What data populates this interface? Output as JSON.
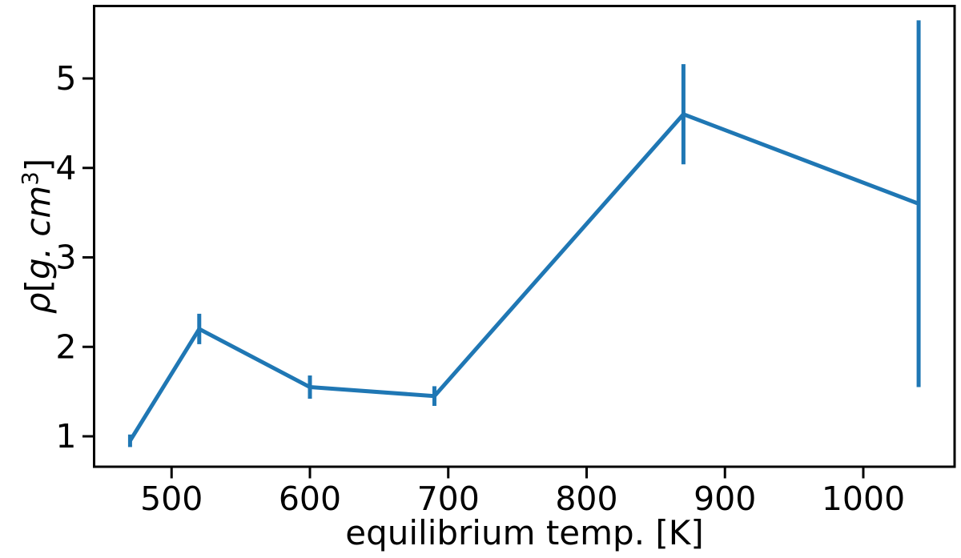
{
  "figure": {
    "background_color": "#ffffff",
    "axis_color": "#000000",
    "line_color": "#1f77b4"
  },
  "chart_data": {
    "type": "line",
    "title": "",
    "xlabel": "equilibrium temp. [K]",
    "ylabel": "ρ[g. cm³]",
    "ylabel_parts": {
      "symbol": "ρ",
      "open_bracket": "[",
      "unit": "g. cm",
      "exponent": "3",
      "close_bracket": "]"
    },
    "x": [
      470,
      520,
      600,
      690,
      870,
      1040
    ],
    "y": [
      0.95,
      2.2,
      1.55,
      1.45,
      4.6,
      3.6
    ],
    "yerr": [
      0.07,
      0.17,
      0.13,
      0.11,
      0.56,
      2.05
    ],
    "xticks": [
      500,
      600,
      700,
      800,
      900,
      1000
    ],
    "yticks": [
      1,
      2,
      3,
      4,
      5
    ],
    "xlim": [
      444,
      1066
    ],
    "ylim": [
      0.66,
      5.81
    ],
    "grid": false,
    "error_bars": true,
    "legend_position": "none"
  }
}
